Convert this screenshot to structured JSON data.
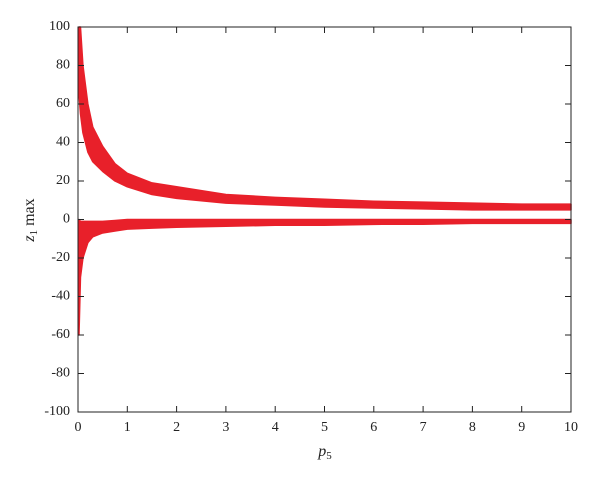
{
  "chart_data": {
    "type": "band",
    "x_label": [
      "p",
      "5"
    ],
    "y_label": [
      "z",
      "1",
      "max"
    ],
    "color": "#e8202a",
    "bands": [
      {
        "x": [
          0.02,
          0.05,
          0.1,
          0.2,
          0.3,
          0.5,
          0.75,
          1,
          1.5,
          2,
          3,
          4,
          5,
          6,
          7,
          8,
          9,
          10
        ],
        "upper": [
          100,
          100,
          80,
          60,
          48,
          38,
          29,
          24,
          19,
          17,
          13,
          11.5,
          10.5,
          9.5,
          9,
          8.5,
          8,
          8
        ],
        "lower": [
          65,
          55,
          45,
          35,
          30,
          25,
          20,
          17,
          13,
          11,
          8.5,
          7.5,
          6.5,
          6,
          5.5,
          5,
          5,
          5
        ]
      },
      {
        "x": [
          0.02,
          0.05,
          0.1,
          0.2,
          0.3,
          0.5,
          0.75,
          1,
          1.5,
          2,
          3,
          4,
          5,
          6,
          7,
          8,
          9,
          10
        ],
        "upper": [
          0,
          -1,
          -1,
          -1,
          -1,
          -1,
          -0.5,
          0,
          0,
          0,
          0,
          0,
          0,
          0,
          0,
          0,
          0,
          0
        ],
        "lower": [
          -60,
          -30,
          -20,
          -12,
          -9,
          -7,
          -6,
          -5,
          -4.5,
          -4,
          -3.5,
          -3,
          -3,
          -2.5,
          -2.5,
          -2,
          -2,
          -2
        ]
      }
    ],
    "xlim": [
      0,
      10
    ],
    "xticks": [
      0,
      1,
      2,
      3,
      4,
      5,
      6,
      7,
      8,
      9,
      10
    ],
    "ylim": [
      -100,
      100
    ],
    "yticks": [
      -100,
      -80,
      -60,
      -40,
      -20,
      0,
      20,
      40,
      60,
      80,
      100
    ]
  }
}
